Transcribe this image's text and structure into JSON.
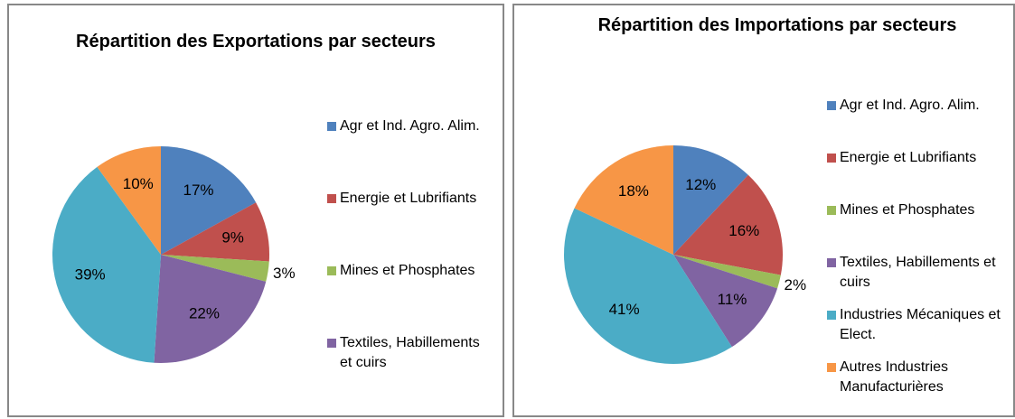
{
  "chart_data": [
    {
      "type": "pie",
      "title": "Répartition des Exportations par secteurs",
      "categories": [
        "Agr et Ind. Agro. Alim.",
        "Energie et Lubrifiants",
        "Mines et Phosphates",
        "Textiles, Habillements et cuirs",
        null,
        null
      ],
      "values": [
        17,
        9,
        3,
        22,
        39,
        10
      ],
      "value_labels": [
        "17%",
        "9%",
        "3%",
        "22%",
        "39%",
        "10%"
      ],
      "colors": [
        "#4f81bd",
        "#c0504d",
        "#9bbb59",
        "#8064a2",
        "#4bacc6",
        "#f79646"
      ]
    },
    {
      "type": "pie",
      "title": "Répartition des Importations par secteurs",
      "categories": [
        "Agr et Ind. Agro. Alim.",
        "Energie et Lubrifiants",
        "Mines et Phosphates",
        "Textiles, Habillements et cuirs",
        "Industries Mécaniques et Elect.",
        "Autres Industries Manufacturières"
      ],
      "values": [
        12,
        16,
        2,
        11,
        41,
        18
      ],
      "value_labels": [
        "12%",
        "16%",
        "2%",
        "11%",
        "41%",
        "18%"
      ],
      "colors": [
        "#4f81bd",
        "#c0504d",
        "#9bbb59",
        "#8064a2",
        "#4bacc6",
        "#f79646"
      ]
    }
  ]
}
